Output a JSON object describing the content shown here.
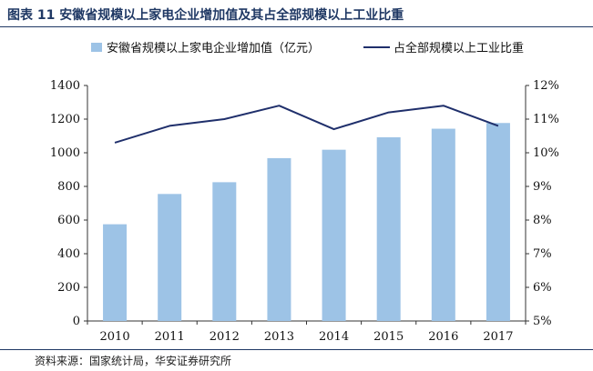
{
  "title": "图表 11 安徽省规模以上家电企业增加值及其占全部规模以上工业比重",
  "source": "资料来源：国家统计局，华安证券研究所",
  "chart_data": {
    "type": "bar+line",
    "categories": [
      "2010",
      "2011",
      "2012",
      "2013",
      "2014",
      "2015",
      "2016",
      "2017"
    ],
    "series": [
      {
        "name": "安徽省规模以上家电企业增加值（亿元）",
        "type": "bar",
        "axis": "left",
        "color": "#9dc3e6",
        "values": [
          575,
          755,
          825,
          968,
          1018,
          1092,
          1143,
          1177
        ]
      },
      {
        "name": "占全部规模以上工业比重",
        "type": "line",
        "axis": "right",
        "color": "#1f2f6b",
        "values": [
          10.3,
          10.8,
          11.0,
          11.4,
          10.7,
          11.2,
          11.4,
          10.8
        ]
      }
    ],
    "y_left": {
      "min": 0,
      "max": 1400,
      "ticks": [
        "0",
        "200",
        "400",
        "600",
        "800",
        "1000",
        "1200",
        "1400"
      ]
    },
    "y_right": {
      "min": 5,
      "max": 12,
      "ticks": [
        "5%",
        "6%",
        "7%",
        "8%",
        "9%",
        "10%",
        "11%",
        "12%"
      ]
    },
    "legend_position": "top",
    "grid": false
  }
}
